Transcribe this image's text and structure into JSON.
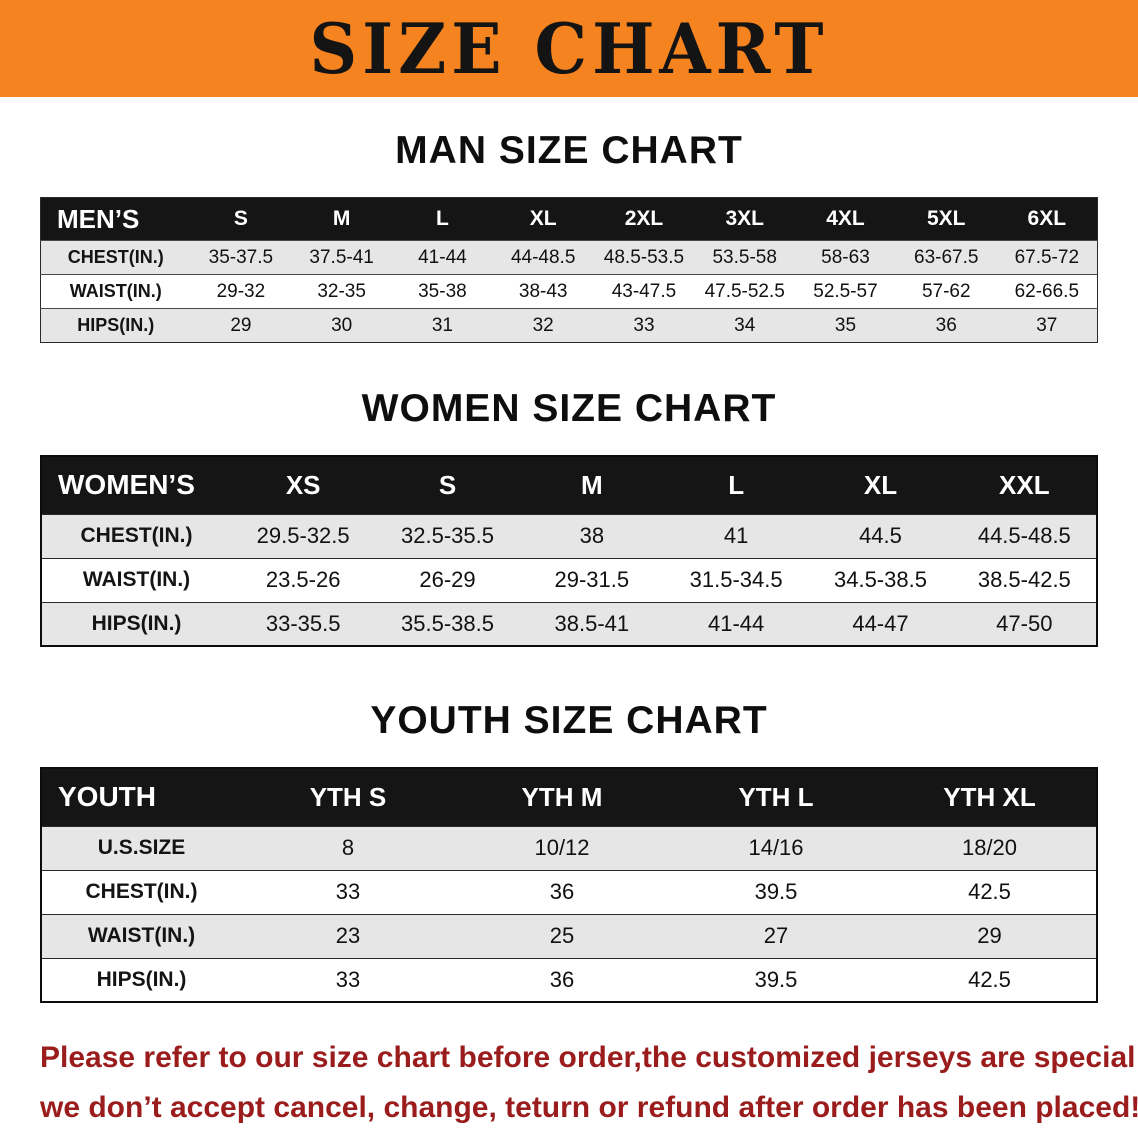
{
  "banner": {
    "title": "SIZE CHART",
    "bg_color": "#f5831f",
    "text_color": "#141414"
  },
  "sections": [
    {
      "id": "men",
      "heading": "MAN SIZE CHART",
      "header_label": "MEN’S",
      "columns": [
        "S",
        "M",
        "L",
        "XL",
        "2XL",
        "3XL",
        "4XL",
        "5XL",
        "6XL"
      ],
      "rows": [
        {
          "label": "CHEST(IN.)",
          "values": [
            "35-37.5",
            "37.5-41",
            "41-44",
            "44-48.5",
            "48.5-53.5",
            "53.5-58",
            "58-63",
            "63-67.5",
            "67.5-72"
          ]
        },
        {
          "label": "WAIST(IN.)",
          "values": [
            "29-32",
            "32-35",
            "35-38",
            "38-43",
            "43-47.5",
            "47.5-52.5",
            "52.5-57",
            "57-62",
            "62-66.5"
          ]
        },
        {
          "label": "HIPS(IN.)",
          "values": [
            "29",
            "30",
            "31",
            "32",
            "33",
            "34",
            "35",
            "36",
            "37"
          ]
        }
      ]
    },
    {
      "id": "women",
      "heading": "WOMEN SIZE CHART",
      "header_label": "WOMEN’S",
      "columns": [
        "XS",
        "S",
        "M",
        "L",
        "XL",
        "XXL"
      ],
      "rows": [
        {
          "label": "CHEST(IN.)",
          "values": [
            "29.5-32.5",
            "32.5-35.5",
            "38",
            "41",
            "44.5",
            "44.5-48.5"
          ]
        },
        {
          "label": "WAIST(IN.)",
          "values": [
            "23.5-26",
            "26-29",
            "29-31.5",
            "31.5-34.5",
            "34.5-38.5",
            "38.5-42.5"
          ]
        },
        {
          "label": "HIPS(IN.)",
          "values": [
            "33-35.5",
            "35.5-38.5",
            "38.5-41",
            "41-44",
            "44-47",
            "47-50"
          ]
        }
      ]
    },
    {
      "id": "youth",
      "heading": "YOUTH SIZE CHART",
      "header_label": "YOUTH",
      "columns": [
        "YTH S",
        "YTH M",
        "YTH L",
        "YTH XL"
      ],
      "rows": [
        {
          "label": "U.S.SIZE",
          "values": [
            "8",
            "10/12",
            "14/16",
            "18/20"
          ]
        },
        {
          "label": "CHEST(IN.)",
          "values": [
            "33",
            "36",
            "39.5",
            "42.5"
          ]
        },
        {
          "label": "WAIST(IN.)",
          "values": [
            "23",
            "25",
            "27",
            "29"
          ]
        },
        {
          "label": "HIPS(IN.)",
          "values": [
            "33",
            "36",
            "39.5",
            "42.5"
          ]
        }
      ]
    }
  ],
  "disclaimer": {
    "color": "#9b1c1c",
    "lines": [
      "Please refer to our size chart before order,the customized jerseys are special products,",
      "we don’t accept cancel, change, teturn or refund after order has been placed!"
    ]
  }
}
